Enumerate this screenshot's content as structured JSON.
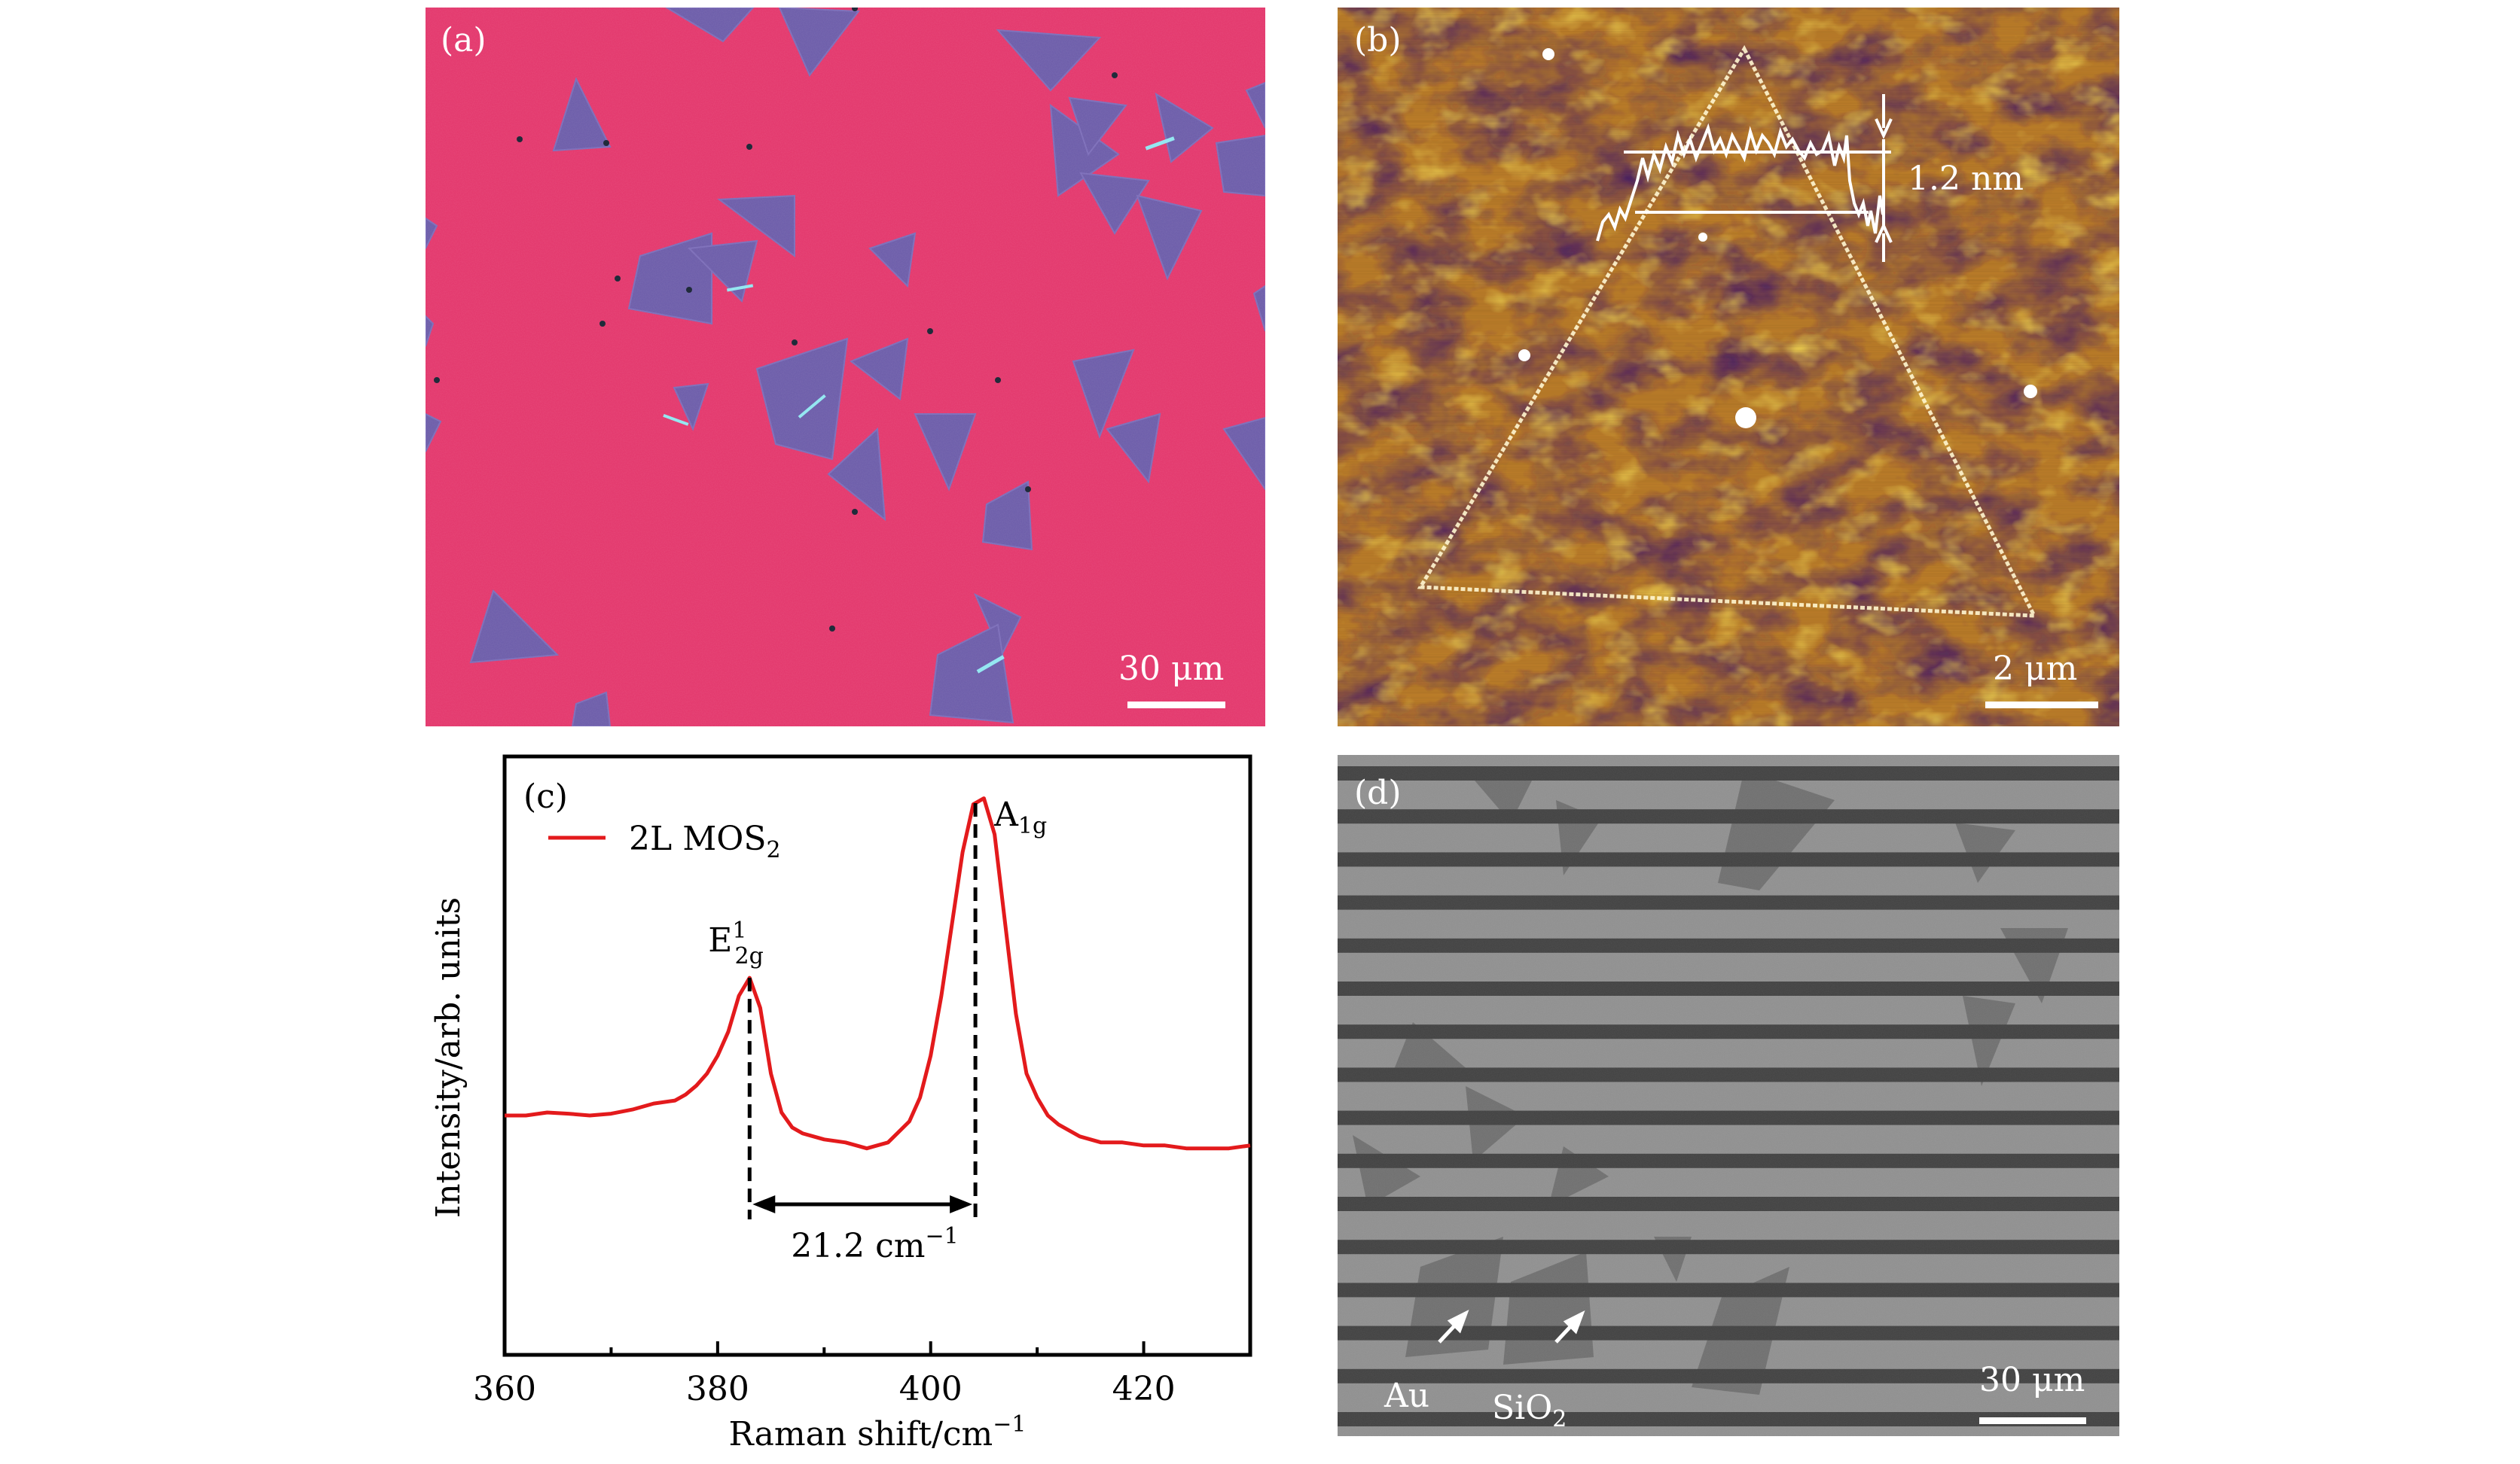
{
  "figure": {
    "panel_a": {
      "label": "(a)",
      "scale_text": "30 μm"
    },
    "panel_b": {
      "label": "(b)",
      "scale_text": "2 μm",
      "height_label": "1.2 nm"
    },
    "panel_c": {
      "label": "(c)"
    },
    "panel_d": {
      "label": "(d)",
      "scale_text": "30 μm",
      "arrow_au": "Au",
      "arrow_sio2_base": "SiO",
      "arrow_sio2_sub": "2"
    }
  },
  "chart_data": {
    "type": "line",
    "title": "",
    "xlabel": "Raman shift/cm",
    "xlabel_sup": "−1",
    "ylabel": "Intensity/arb. units",
    "xlim": [
      360,
      430
    ],
    "ylim": [
      0,
      1.0
    ],
    "xticks": [
      360,
      380,
      400,
      420
    ],
    "legend": {
      "base": "2L MOS",
      "sub": "2",
      "color": "#e31a1c",
      "placement": "top-left"
    },
    "series": [
      {
        "name": "2L MOS2",
        "color": "#e31a1c",
        "x": [
          360,
          362,
          364,
          366,
          368,
          370,
          372,
          374,
          376,
          377,
          378,
          379,
          380,
          381,
          382,
          383,
          384,
          385,
          386,
          387,
          388,
          389,
          390,
          392,
          394,
          396,
          398,
          399,
          400,
          401,
          402,
          403,
          404,
          405,
          406,
          407,
          408,
          409,
          410,
          411,
          412,
          414,
          416,
          418,
          420,
          422,
          424,
          426,
          428,
          430
        ],
        "y": [
          0.4,
          0.4,
          0.405,
          0.403,
          0.4,
          0.403,
          0.41,
          0.42,
          0.425,
          0.435,
          0.45,
          0.47,
          0.5,
          0.54,
          0.6,
          0.63,
          0.58,
          0.47,
          0.405,
          0.38,
          0.37,
          0.365,
          0.36,
          0.355,
          0.345,
          0.355,
          0.39,
          0.43,
          0.5,
          0.6,
          0.72,
          0.84,
          0.92,
          0.93,
          0.87,
          0.72,
          0.57,
          0.47,
          0.43,
          0.4,
          0.385,
          0.365,
          0.355,
          0.355,
          0.35,
          0.35,
          0.345,
          0.345,
          0.345,
          0.35
        ]
      }
    ],
    "annotations": {
      "peak1": {
        "x": 383,
        "label_base": "E",
        "label_sup": "1",
        "label_sub": "2g"
      },
      "peak2": {
        "x": 404.2,
        "label_base": "A",
        "label_sub": "1g"
      },
      "separation": {
        "label_base": "21.2 cm",
        "label_sup": "−1"
      }
    }
  }
}
